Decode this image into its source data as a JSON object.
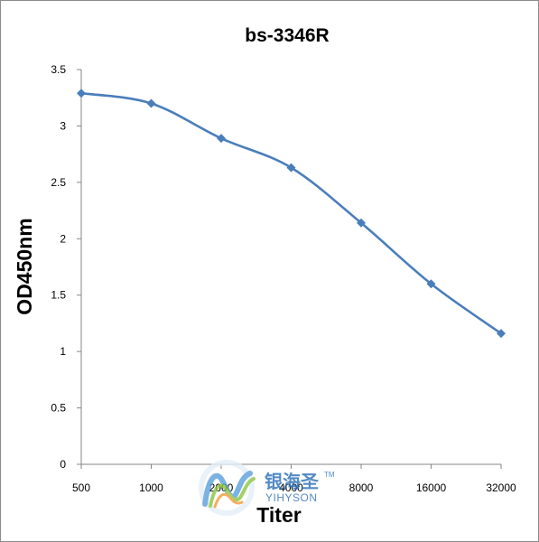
{
  "chart_data": {
    "type": "line",
    "title": "bs-3346R",
    "xlabel": "Titer",
    "ylabel": "OD450nm",
    "categories": [
      "500",
      "1000",
      "2000",
      "4000",
      "8000",
      "16000",
      "32000"
    ],
    "series": [
      {
        "values": [
          3.29,
          3.2,
          2.89,
          2.63,
          2.14,
          1.6,
          1.16
        ],
        "color": "#4a7ebb"
      }
    ],
    "ylim": [
      0,
      3.5
    ],
    "yticks": [
      "0",
      "0.5",
      "1",
      "1.5",
      "2",
      "2.5",
      "3",
      "3.5"
    ],
    "grid": false,
    "legend": "none",
    "marker": "diamond"
  },
  "watermark": {
    "chinese": "银海圣",
    "english": "YIHYSON",
    "trademark": "TM"
  }
}
